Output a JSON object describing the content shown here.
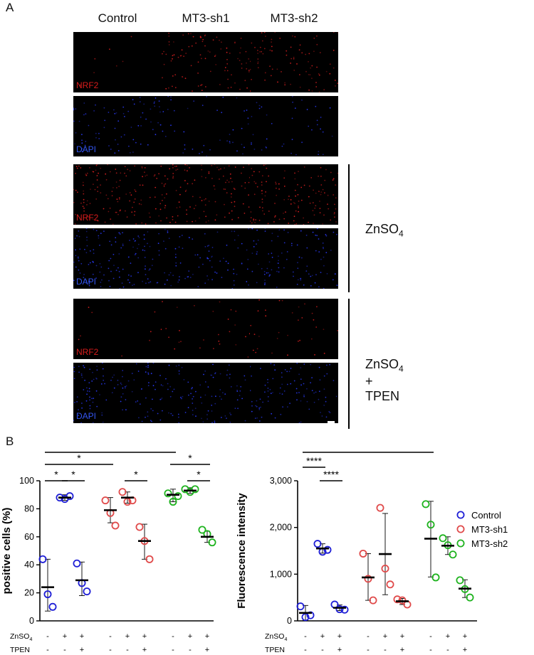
{
  "panelA": {
    "letter": "A",
    "columns": [
      "Control",
      "MT3-sh1",
      "MT3-sh2"
    ],
    "stain_labels": {
      "nrf2": "NRF2",
      "dapi": "DAPI"
    },
    "conditions": [
      {
        "label": "",
        "nrf2_density": [
          0.03,
          0.45,
          0.4
        ],
        "dapi_density": [
          0.35,
          0.2,
          0.18
        ]
      },
      {
        "label": "ZnSO",
        "sub": "4",
        "suffix": "",
        "nrf2_density": [
          0.6,
          0.55,
          0.6
        ],
        "dapi_density": [
          0.6,
          0.4,
          0.45
        ]
      },
      {
        "label": "ZnSO",
        "sub": "4",
        "suffix": " + TPEN",
        "nrf2_density": [
          0.04,
          0.12,
          0.15
        ],
        "dapi_density": [
          0.55,
          0.45,
          0.45
        ]
      }
    ],
    "colors": {
      "nrf2": "#e02020",
      "dapi": "#2a3cff"
    }
  },
  "panelB": {
    "letter": "B",
    "treatment_rows": {
      "zn_label": "ZnSO",
      "zn_sub": "4",
      "tpen_label": "TPEN",
      "zn": [
        "-",
        "+",
        "+",
        "-",
        "+",
        "+",
        "-",
        "+",
        "+"
      ],
      "tpen": [
        "-",
        "-",
        "+",
        "-",
        "-",
        "+",
        "-",
        "-",
        "+"
      ]
    }
  },
  "chart_data": [
    {
      "type": "scatter",
      "title": "",
      "ylabel": "positive cells (%)",
      "xlabel": "",
      "ylim": [
        0,
        100
      ],
      "yticks": [
        "0",
        "20",
        "40",
        "60",
        "80",
        "100"
      ],
      "groups": [
        {
          "series": "Control",
          "points": [
            44,
            19,
            10
          ],
          "mean": 24,
          "sd": [
            7,
            44
          ]
        },
        {
          "series": "Control",
          "points": [
            88,
            87,
            89
          ],
          "mean": 88,
          "sd": [
            86,
            90
          ]
        },
        {
          "series": "Control",
          "points": [
            41,
            27,
            21
          ],
          "mean": 29,
          "sd": [
            18,
            42
          ]
        },
        {
          "series": "MT3-sh1",
          "points": [
            86,
            77,
            68
          ],
          "mean": 79,
          "sd": [
            70,
            88
          ]
        },
        {
          "series": "MT3-sh1",
          "points": [
            92,
            85,
            86
          ],
          "mean": 88,
          "sd": [
            84,
            92
          ]
        },
        {
          "series": "MT3-sh1",
          "points": [
            67,
            57,
            44
          ],
          "mean": 57,
          "sd": [
            44,
            69
          ]
        },
        {
          "series": "MT3-sh2",
          "points": [
            91,
            85,
            89
          ],
          "mean": 90,
          "sd": [
            85,
            94
          ]
        },
        {
          "series": "MT3-sh2",
          "points": [
            94,
            92,
            94
          ],
          "mean": 93,
          "sd": [
            91,
            95
          ]
        },
        {
          "series": "MT3-sh2",
          "points": [
            65,
            62,
            56
          ],
          "mean": 60,
          "sd": [
            56,
            64
          ]
        }
      ],
      "significance": [
        {
          "from": 0,
          "to": 6,
          "label": "*"
        },
        {
          "from": 0,
          "to": 3,
          "label": "*"
        },
        {
          "from": 6,
          "to": 8,
          "label": "*"
        },
        {
          "from": 0,
          "to": 1,
          "label": "*"
        },
        {
          "from": 1,
          "to": 2,
          "label": "*"
        },
        {
          "from": 4,
          "to": 5,
          "label": "*"
        },
        {
          "from": 7,
          "to": 8,
          "label": "*"
        }
      ]
    },
    {
      "type": "scatter",
      "title": "",
      "ylabel": "Fluorescence intensity",
      "xlabel": "",
      "ylim": [
        0,
        3000
      ],
      "yticks": [
        "0",
        "1,000",
        "2,000",
        "3,000"
      ],
      "groups": [
        {
          "series": "Control",
          "points": [
            310,
            80,
            120
          ],
          "mean": 170,
          "sd": [
            10,
            330
          ]
        },
        {
          "series": "Control",
          "points": [
            1650,
            1480,
            1520
          ],
          "mean": 1550,
          "sd": [
            1450,
            1650
          ]
        },
        {
          "series": "Control",
          "points": [
            350,
            250,
            240
          ],
          "mean": 280,
          "sd": [
            220,
            340
          ]
        },
        {
          "series": "MT3-sh1",
          "points": [
            1440,
            900,
            440
          ],
          "mean": 930,
          "sd": [
            440,
            1440
          ]
        },
        {
          "series": "MT3-sh1",
          "points": [
            2420,
            1120,
            780
          ],
          "mean": 1430,
          "sd": [
            560,
            2300
          ]
        },
        {
          "series": "MT3-sh1",
          "points": [
            460,
            440,
            350
          ],
          "mean": 420,
          "sd": [
            350,
            480
          ]
        },
        {
          "series": "MT3-sh2",
          "points": [
            2500,
            2060,
            930
          ],
          "mean": 1760,
          "sd": [
            940,
            2560
          ]
        },
        {
          "series": "MT3-sh2",
          "points": [
            1770,
            1620,
            1420
          ],
          "mean": 1610,
          "sd": [
            1420,
            1800
          ]
        },
        {
          "series": "MT3-sh2",
          "points": [
            870,
            680,
            500
          ],
          "mean": 690,
          "sd": [
            500,
            880
          ]
        }
      ],
      "significance": [
        {
          "from": 0,
          "to": 6,
          "label": "*"
        },
        {
          "from": 0,
          "to": 1,
          "label": "****"
        },
        {
          "from": 1,
          "to": 2,
          "label": "****"
        }
      ]
    }
  ],
  "legend": {
    "placement": "right",
    "items": [
      {
        "name": "Control",
        "color": "#1f1fd6"
      },
      {
        "name": "MT3-sh1",
        "color": "#e04a4a"
      },
      {
        "name": "MT3-sh2",
        "color": "#1eb31e"
      }
    ]
  }
}
